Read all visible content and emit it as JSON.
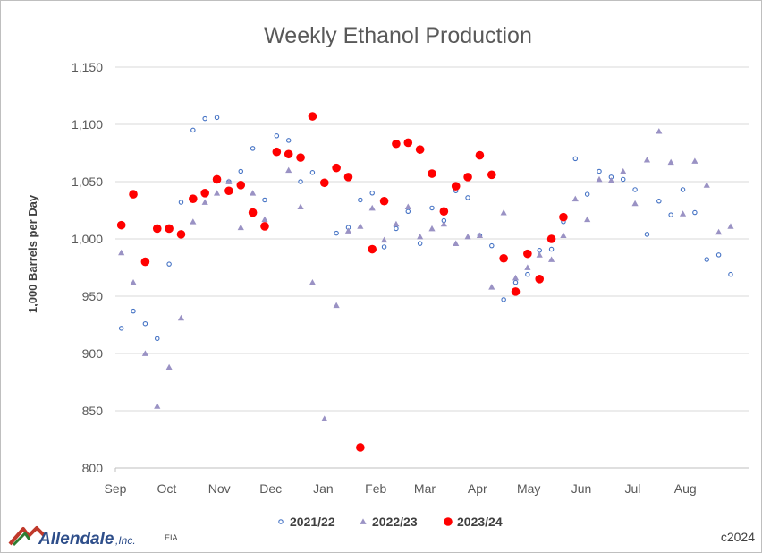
{
  "chart_data": {
    "type": "scatter",
    "title": "Weekly Ethanol Production",
    "ylabel": "1,000 Barrels per Day",
    "xlabel": "",
    "ylim": [
      800,
      1150
    ],
    "yticks": [
      "800",
      "850",
      "900",
      "950",
      "1,000",
      "1,050",
      "1,100",
      "1,150"
    ],
    "ytick_values": [
      800,
      850,
      900,
      950,
      1000,
      1050,
      1100,
      1150
    ],
    "x_categories": [
      "Sep",
      "Oct",
      "Nov",
      "Dec",
      "Jan",
      "Feb",
      "Mar",
      "Apr",
      "May",
      "Jun",
      "Jul",
      "Aug"
    ],
    "weeks_total": 53,
    "grid": "horizontal",
    "legend_position": "bottom",
    "series": [
      {
        "name": "2021/22",
        "marker": "open-circle",
        "color": "#4472c4",
        "points": [
          [
            0,
            922
          ],
          [
            1,
            937
          ],
          [
            2,
            926
          ],
          [
            3,
            913
          ],
          [
            4,
            978
          ],
          [
            5,
            1032
          ],
          [
            6,
            1095
          ],
          [
            7,
            1105
          ],
          [
            8,
            1106
          ],
          [
            9,
            1050
          ],
          [
            10,
            1059
          ],
          [
            11,
            1079
          ],
          [
            12,
            1034
          ],
          [
            13,
            1090
          ],
          [
            14,
            1086
          ],
          [
            15,
            1050
          ],
          [
            16,
            1058
          ],
          [
            17,
            1049
          ],
          [
            18,
            1005
          ],
          [
            19,
            1010
          ],
          [
            20,
            1034
          ],
          [
            21,
            1040
          ],
          [
            22,
            993
          ],
          [
            23,
            1009
          ],
          [
            24,
            1024
          ],
          [
            25,
            996
          ],
          [
            26,
            1027
          ],
          [
            27,
            1016
          ],
          [
            28,
            1042
          ],
          [
            29,
            1036
          ],
          [
            30,
            1003
          ],
          [
            31,
            994
          ],
          [
            32,
            947
          ],
          [
            33,
            962
          ],
          [
            34,
            969
          ],
          [
            35,
            990
          ],
          [
            36,
            991
          ],
          [
            37,
            1015
          ],
          [
            38,
            1070
          ],
          [
            39,
            1039
          ],
          [
            40,
            1059
          ],
          [
            41,
            1054
          ],
          [
            42,
            1052
          ],
          [
            43,
            1043
          ],
          [
            44,
            1004
          ],
          [
            45,
            1033
          ],
          [
            46,
            1021
          ],
          [
            47,
            1043
          ],
          [
            48,
            1023
          ],
          [
            49,
            982
          ],
          [
            50,
            986
          ],
          [
            51,
            969
          ]
        ]
      },
      {
        "name": "2022/23",
        "marker": "triangle",
        "color": "#9a92c4",
        "points": [
          [
            0,
            988
          ],
          [
            1,
            962
          ],
          [
            2,
            900
          ],
          [
            3,
            854
          ],
          [
            4,
            888
          ],
          [
            5,
            931
          ],
          [
            6,
            1015
          ],
          [
            7,
            1032
          ],
          [
            8,
            1040
          ],
          [
            9,
            1050
          ],
          [
            10,
            1010
          ],
          [
            11,
            1040
          ],
          [
            12,
            1017
          ],
          [
            13,
            1077
          ],
          [
            14,
            1060
          ],
          [
            15,
            1028
          ],
          [
            16,
            962
          ],
          [
            17,
            843
          ],
          [
            18,
            942
          ],
          [
            19,
            1007
          ],
          [
            20,
            1011
          ],
          [
            21,
            1027
          ],
          [
            22,
            999
          ],
          [
            23,
            1013
          ],
          [
            24,
            1028
          ],
          [
            25,
            1002
          ],
          [
            26,
            1009
          ],
          [
            27,
            1013
          ],
          [
            28,
            996
          ],
          [
            29,
            1002
          ],
          [
            30,
            1003
          ],
          [
            31,
            958
          ],
          [
            32,
            1023
          ],
          [
            33,
            966
          ],
          [
            34,
            975
          ],
          [
            35,
            986
          ],
          [
            36,
            982
          ],
          [
            37,
            1003
          ],
          [
            38,
            1035
          ],
          [
            39,
            1017
          ],
          [
            40,
            1052
          ],
          [
            41,
            1051
          ],
          [
            42,
            1059
          ],
          [
            43,
            1031
          ],
          [
            44,
            1069
          ],
          [
            45,
            1094
          ],
          [
            46,
            1067
          ],
          [
            47,
            1022
          ],
          [
            48,
            1068
          ],
          [
            49,
            1047
          ],
          [
            50,
            1006
          ],
          [
            51,
            1011
          ]
        ]
      },
      {
        "name": "2023/24",
        "marker": "filled-circle",
        "color": "#ff0000",
        "points": [
          [
            0,
            1012
          ],
          [
            1,
            1039
          ],
          [
            2,
            980
          ],
          [
            3,
            1009
          ],
          [
            4,
            1009
          ],
          [
            5,
            1004
          ],
          [
            6,
            1035
          ],
          [
            7,
            1040
          ],
          [
            8,
            1052
          ],
          [
            9,
            1042
          ],
          [
            10,
            1047
          ],
          [
            11,
            1023
          ],
          [
            12,
            1011
          ],
          [
            13,
            1076
          ],
          [
            14,
            1074
          ],
          [
            15,
            1071
          ],
          [
            16,
            1107
          ],
          [
            17,
            1049
          ],
          [
            18,
            1062
          ],
          [
            19,
            1054
          ],
          [
            20,
            818
          ],
          [
            21,
            991
          ],
          [
            22,
            1033
          ],
          [
            23,
            1083
          ],
          [
            24,
            1084
          ],
          [
            25,
            1078
          ],
          [
            26,
            1057
          ],
          [
            27,
            1024
          ],
          [
            28,
            1046
          ],
          [
            29,
            1054
          ],
          [
            30,
            1073
          ],
          [
            31,
            1056
          ],
          [
            32,
            983
          ],
          [
            33,
            954
          ],
          [
            34,
            987
          ],
          [
            35,
            965
          ],
          [
            36,
            1000
          ],
          [
            37,
            1019
          ]
        ]
      }
    ]
  },
  "footer": {
    "logo_main": "Allendale",
    "logo_inc": ",Inc.",
    "source": "EIA",
    "copyright": "c2024"
  }
}
